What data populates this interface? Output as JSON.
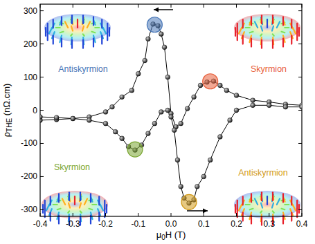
{
  "chart_data": {
    "type": "line",
    "xlabel": {
      "text": "μ",
      "subscript": "0",
      "suffix": "H (T)"
    },
    "ylabel": {
      "text": "ρ",
      "subscript": "THE",
      "suffix": " (nΩ.cm)"
    },
    "xlim": [
      -0.4,
      0.4
    ],
    "ylim": [
      -320,
      320
    ],
    "xticks": [
      -0.4,
      -0.3,
      -0.2,
      -0.1,
      {
        "value": 0,
        "label": "0.0"
      },
      0.1,
      0.2,
      0.3,
      0.4
    ],
    "yticks": [
      -300,
      -200,
      -100,
      0,
      100,
      200,
      300
    ],
    "series": [
      {
        "color": "#000000",
        "marker": "circle",
        "line_style": "solid",
        "x": [
          0.4,
          0.35,
          0.3,
          0.25,
          0.2,
          0.17,
          0.15,
          0.13,
          0.11,
          0.09,
          0.07,
          0.05,
          0.03,
          0.015,
          0.0,
          -0.01,
          -0.02,
          -0.03,
          -0.04,
          -0.055,
          -0.07,
          -0.08,
          -0.1,
          -0.12,
          -0.15,
          -0.18,
          -0.2,
          -0.25,
          -0.3,
          -0.35,
          -0.4
        ],
        "values": [
          15,
          18,
          25,
          30,
          45,
          60,
          75,
          88,
          85,
          75,
          40,
          5,
          -40,
          -50,
          -10,
          100,
          190,
          230,
          255,
          260,
          215,
          150,
          110,
          60,
          40,
          10,
          -5,
          -20,
          -25,
          -28,
          -30
        ]
      },
      {
        "color": "#000000",
        "marker": "circle",
        "line_style": "solid",
        "x": [
          -0.4,
          -0.35,
          -0.3,
          -0.25,
          -0.2,
          -0.17,
          -0.15,
          -0.13,
          -0.11,
          -0.09,
          -0.07,
          -0.05,
          -0.03,
          -0.01,
          0.0,
          0.01,
          0.02,
          0.03,
          0.04,
          0.055,
          0.07,
          0.08,
          0.1,
          0.12,
          0.15,
          0.18,
          0.2,
          0.25,
          0.3,
          0.35,
          0.4
        ],
        "values": [
          -20,
          -22,
          -25,
          -30,
          -40,
          -65,
          -85,
          -110,
          -120,
          -105,
          -70,
          -40,
          -5,
          0,
          -20,
          -60,
          -150,
          -230,
          -265,
          -280,
          -270,
          -230,
          -200,
          -150,
          -80,
          -30,
          0,
          15,
          15,
          10,
          10
        ]
      }
    ],
    "annotations": [
      {
        "text": "Antiskyrmion",
        "x": -0.05,
        "y": 258,
        "color": "#4a78b8"
      },
      {
        "text": "Skyrmion",
        "x": 0.12,
        "y": 87,
        "color": "#e8603c"
      },
      {
        "text": "Skyrmion",
        "x": -0.11,
        "y": -118,
        "color": "#7aa632"
      },
      {
        "text": "Antiskyrmion",
        "x": 0.055,
        "y": -277,
        "color": "#d19a1a"
      }
    ]
  }
}
